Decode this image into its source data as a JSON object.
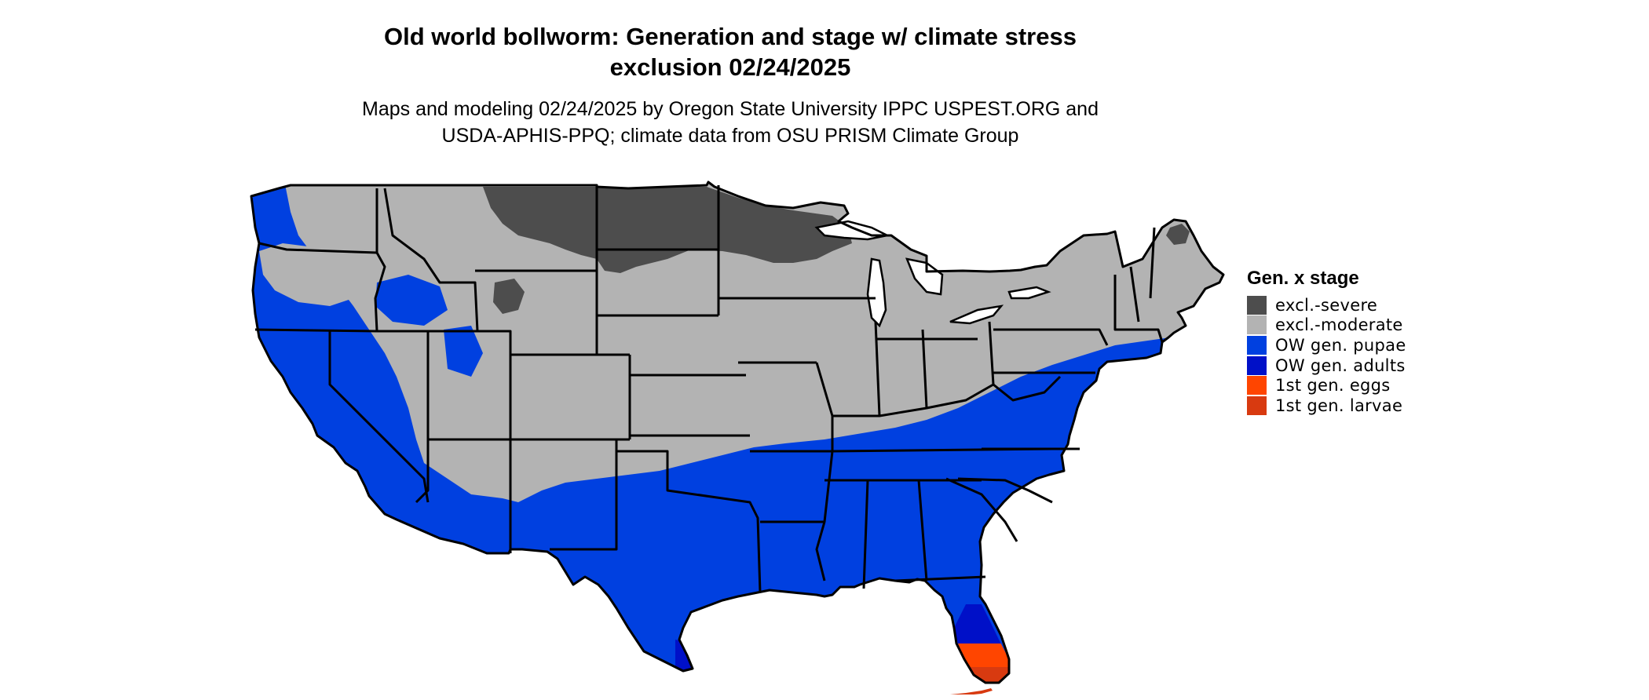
{
  "title_line1": "Old world bollworm: Generation and stage w/ climate stress",
  "title_line2": "exclusion 02/24/2025",
  "subtitle_line1": "Maps and modeling 02/24/2025 by Oregon State University IPPC USPEST.ORG and",
  "subtitle_line2": "USDA-APHIS-PPQ; climate data from OSU PRISM Climate Group",
  "legend": {
    "title": "Gen. x stage",
    "items": [
      {
        "label": "excl.-severe",
        "color": "#4d4d4d"
      },
      {
        "label": "excl.-moderate",
        "color": "#b3b3b3"
      },
      {
        "label": "OW gen. pupae",
        "color": "#0040e0"
      },
      {
        "label": "OW gen. adults",
        "color": "#0010c8"
      },
      {
        "label": "1st gen. eggs",
        "color": "#ff4500"
      },
      {
        "label": "1st gen. larvae",
        "color": "#d83a10"
      }
    ]
  },
  "map": {
    "region": "conterminous United States",
    "boundaries": "state",
    "colors": {
      "severe": "#4d4d4d",
      "moderate": "#b3b3b3",
      "pupae": "#0040e0",
      "adults": "#0010c8",
      "eggs": "#ff4500",
      "larvae": "#d83a10",
      "border": "#000000"
    }
  }
}
